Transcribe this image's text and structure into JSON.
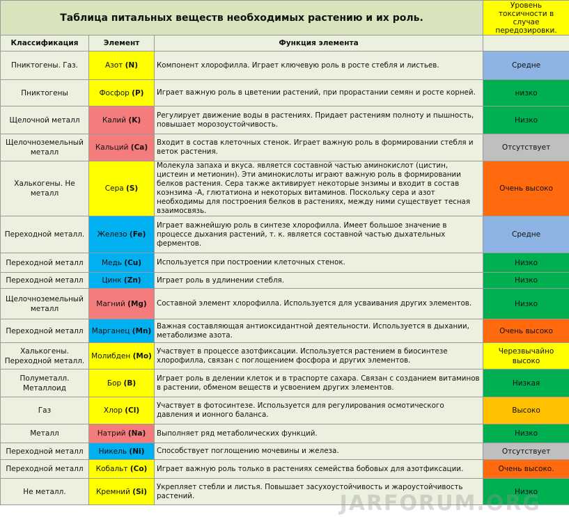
{
  "header": {
    "title": "Таблица питальных веществ необходимых растению и их роль.",
    "toxicity_title": "Уровень токсичности в случае передозировки."
  },
  "columns": [
    "Классификация",
    "Элемент",
    "Функция элемента",
    ""
  ],
  "watermark": "JARFORUM.ORG",
  "rows": [
    {
      "classification": "Пниктогены. Газ.",
      "element": "Азот",
      "symbol": "(N)",
      "element_color": "#ffff00",
      "function": "Компонент хлорофилла. Играет ключевую роль в росте стебля и листьев.",
      "toxicity": "Средне",
      "toxicity_color": "#8db4e2"
    },
    {
      "classification": "Пниктогены",
      "element": "Фосфор",
      "symbol": "(P)",
      "element_color": "#ffff00",
      "function": "Играет важную роль в цветении растений, при прорастании семян и росте корней.",
      "toxicity": "низко",
      "toxicity_color": "#00b050"
    },
    {
      "classification": "Щелочной металл",
      "element": "Калий",
      "symbol": "(K)",
      "element_color": "#f57c7c",
      "function": "Регулирует движение воды в растениях. Придает растениям полноту и пышность, повышает морозоустойчивость.",
      "toxicity": "Низко",
      "toxicity_color": "#00b050"
    },
    {
      "classification": "Щелочноземельный металл",
      "element": "Кальций",
      "symbol": "(Ca)",
      "element_color": "#f57c7c",
      "function": "Входит в состав клеточных стенок. Играет важную роль в формировании стебля и веток растения.",
      "toxicity": "Отсутствует",
      "toxicity_color": "#bfbfbf"
    },
    {
      "classification": "Халькогены. Не металл",
      "element": "Сера",
      "symbol": "(S)",
      "element_color": "#ffff00",
      "function": "Молекула запаха и вкуса. является составной частью аминокислот (цистин, цистеин и метионин). Эти аминокислоты играют важную роль в формировании белков растения. Сера также активирует некоторые энзимы и входит в состав коэнзима -А, глютатиона и некоторых витаминов. Поскольку сера и азот необходимы для построения белков в растениях, между ними существует тесная взаимосвязь.",
      "toxicity": "Очень высоко",
      "toxicity_color": "#ff6a0e"
    },
    {
      "classification": "Переходной металл.",
      "element": "Железо",
      "symbol": "(Fe)",
      "element_color": "#00b0f0",
      "function": "Играет важнейшую роль в синтезе хлорофилла. Имеет большое значение в процессе дыхания растений, т. к. является составной частью дыхательных ферментов.",
      "toxicity": "Средне",
      "toxicity_color": "#8db4e2"
    },
    {
      "classification": "Переходной металл",
      "element": "Медь",
      "symbol": "(Cu)",
      "element_color": "#00b0f0",
      "function": "Используется при построении клеточных стенок.",
      "toxicity": "Низко",
      "toxicity_color": "#00b050"
    },
    {
      "classification": "Переходной металл",
      "element": "Цинк",
      "symbol": "(Zn)",
      "element_color": "#00b0f0",
      "function": "Играет роль в удлинении стебля.",
      "toxicity": "Низко",
      "toxicity_color": "#00b050"
    },
    {
      "classification": "Щелочноземельный металл",
      "element": "Магний",
      "symbol": "(Mg)",
      "element_color": "#f57c7c",
      "function": "Составной элемент хлорофилла. Используется для усваивания других элементов.",
      "toxicity": "Низко",
      "toxicity_color": "#00b050"
    },
    {
      "classification": "Переходной металл",
      "element": "Марганец",
      "symbol": "(Mn)",
      "element_color": "#00b0f0",
      "function": "Важная  составляющая антиоксидантной деятельности. Используется в дыхании, метаболизме азота.",
      "toxicity": "Очень высоко",
      "toxicity_color": "#ff6a0e"
    },
    {
      "classification": "Халькогены. Переходной металл.",
      "element": "Молибден",
      "symbol": "(Mo)",
      "element_color": "#ffff00",
      "function": "Участвует в процессе азотфиксации. Используется растением в биосинтезе хлорофилла, связан с поглощением фосфора и других элементов.",
      "toxicity": "Черезвычайно высоко",
      "toxicity_color": "#ffff00"
    },
    {
      "classification": "Полуметалл. Металлоид",
      "element": "Бор",
      "symbol": "(B)",
      "element_color": "#ffff00",
      "function": "Играет роль в делении клеток и в траспорте сахара. Связан с созданием витаминов в растении, обменом веществ и усвоением других элементов.",
      "toxicity": "Низкая",
      "toxicity_color": "#00b050"
    },
    {
      "classification": "Газ",
      "element": "Хлор",
      "symbol": "(Cl)",
      "element_color": "#ffff00",
      "function": "Участвует в фотосинтезе. Используется для регулирования осмотического давления и ионного баланса.",
      "toxicity": "Высоко",
      "toxicity_color": "#ffc000"
    },
    {
      "classification": "Металл",
      "element": "Натрий",
      "symbol": "(Na)",
      "element_color": "#f57c7c",
      "function": "Выполняет ряд метаболических функций.",
      "toxicity": "Низко",
      "toxicity_color": "#00b050"
    },
    {
      "classification": "Переходной металл",
      "element": "Никель",
      "symbol": "(Ni)",
      "element_color": "#00b0f0",
      "function": "Способствует поглощению мочевины и железа.",
      "toxicity": "Отсутствует",
      "toxicity_color": "#bfbfbf"
    },
    {
      "classification": "Переходной металл",
      "element": "Кобальт",
      "symbol": "(Co)",
      "element_color": "#ffff00",
      "function": "Играет важную роль только в растениях семейства бобовых для азотфиксации.",
      "toxicity": "Очень высоко.",
      "toxicity_color": "#ff6a0e"
    },
    {
      "classification": "Не металл.",
      "element": "Кремний",
      "symbol": "(Si)",
      "element_color": "#ffff00",
      "function": "Укрепляет стебли и листья. Повышает засухоустойчивость и жароустойчивость растений.",
      "toxicity": "Низко",
      "toxicity_color": "#00b050"
    }
  ]
}
